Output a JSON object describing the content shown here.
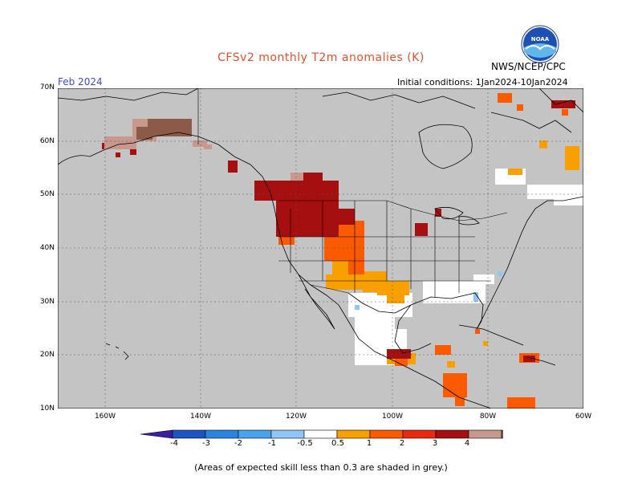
{
  "header": {
    "title": "CFSv2 monthly T2m anomalies (K)",
    "agency": "NWS/NCEP/CPC",
    "logo_text": "NOAA",
    "month": "Feb 2024",
    "initial_conditions": "Initial conditions: 1Jan2024-10Jan2024"
  },
  "axes": {
    "lat_labels": [
      "70N",
      "60N",
      "50N",
      "40N",
      "30N",
      "20N",
      "10N"
    ],
    "lon_labels": [
      "160W",
      "140W",
      "120W",
      "100W",
      "80W",
      "60W"
    ]
  },
  "legend": {
    "labels": [
      "-4",
      "-3",
      "-2",
      "-1",
      "-0.5",
      "0.5",
      "1",
      "2",
      "3",
      "4"
    ],
    "colors": {
      "lt_m4": "#3b1fa3",
      "m4_m3": "#1d52c4",
      "m3_m2": "#2b84df",
      "m2_m1": "#4aa3ee",
      "m1_m05": "#8fc6f5",
      "neutral": "#ffffff",
      "p05_p1": "#f7a000",
      "p1_p2": "#fa5a00",
      "p2_p3": "#ea2a10",
      "p3_p4": "#a50f0f",
      "p4_p5": "#c8988f",
      "gt_p5": "#8c5a48"
    }
  },
  "map": {
    "low_skill_color": "#c4c4c4",
    "land_color": "#ffffff"
  },
  "footnote": "(Areas of expected skill less than 0.3 are shaded in grey.)"
}
